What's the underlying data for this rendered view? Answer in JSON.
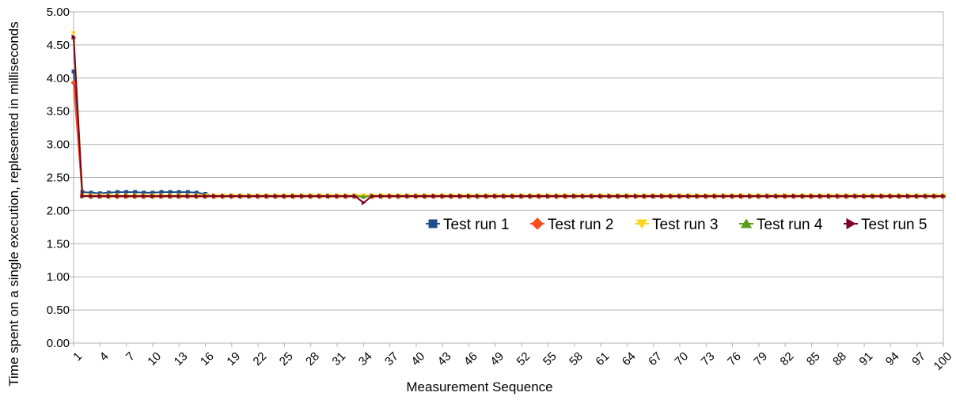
{
  "chart_data": {
    "type": "line",
    "title": "",
    "xlabel": "Measurement Sequence",
    "ylabel": "Time spent on a single execution, replesented in milliseconds",
    "ylim": [
      0,
      5
    ],
    "yticks": [
      "0.00",
      "0.50",
      "1.00",
      "1.50",
      "2.00",
      "2.50",
      "3.00",
      "3.50",
      "4.00",
      "4.50",
      "5.00"
    ],
    "x_range": [
      1,
      100
    ],
    "xticks": [
      1,
      4,
      7,
      10,
      13,
      16,
      19,
      22,
      25,
      28,
      31,
      34,
      37,
      40,
      43,
      46,
      49,
      52,
      55,
      58,
      61,
      64,
      67,
      70,
      73,
      76,
      79,
      82,
      85,
      88,
      91,
      94,
      97,
      100
    ],
    "grid": "horizontal",
    "legend_position": "right",
    "series": [
      {
        "name": "Test run 1",
        "color": "#1f4e8c",
        "marker": "square",
        "first": [
          4.1,
          2.28,
          2.27,
          2.26,
          2.27,
          2.28,
          2.28,
          2.28,
          2.27,
          2.27,
          2.28,
          2.28,
          2.28,
          2.28,
          2.27,
          2.25
        ],
        "rest": 2.22
      },
      {
        "name": "Test run 2",
        "color": "#ff4a1c",
        "marker": "diamond",
        "first": [
          3.93,
          2.22
        ],
        "rest": 2.21
      },
      {
        "name": "Test run 3",
        "color": "#ffd320",
        "marker": "triangle-down",
        "first": [
          4.68,
          2.23
        ],
        "rest": 2.23
      },
      {
        "name": "Test run 4",
        "color": "#579d1c",
        "marker": "triangle-up",
        "first": [
          4.62,
          2.22
        ],
        "rest": 2.22,
        "point_34": 2.21
      },
      {
        "name": "Test run 5",
        "color": "#7e0021",
        "marker": "triangle-right",
        "first": [
          4.62,
          2.22
        ],
        "rest": 2.22,
        "point_34": 2.12
      }
    ]
  }
}
